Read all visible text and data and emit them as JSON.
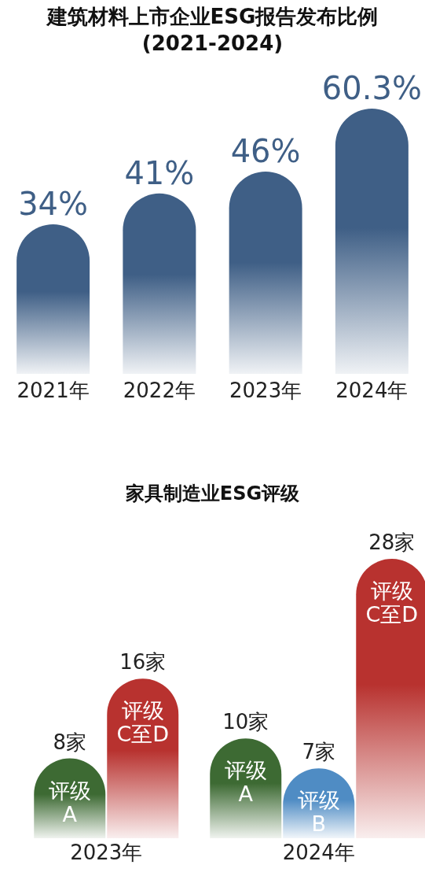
{
  "chart_data": [
    {
      "type": "bar",
      "title": "建筑材料上市企业ESG报告发布比例",
      "subtitle": "(2021-2024)",
      "categories": [
        "2021年",
        "2022年",
        "2023年",
        "2024年"
      ],
      "values": [
        34,
        41,
        46,
        60.3
      ],
      "color": "#3f5f86",
      "value_labels": [
        "34%",
        "41%",
        "46%",
        "60.3%"
      ]
    },
    {
      "type": "bar",
      "title": "家具制造业ESG评级",
      "categories": [
        "2023年",
        "2024年"
      ],
      "series": [
        {
          "name": "评级 A",
          "color": "#3d6a33",
          "values": [
            8,
            10
          ],
          "value_labels": [
            "8家",
            "10家"
          ]
        },
        {
          "name": "评级 B",
          "color": "#4f8cc4",
          "values": [
            null,
            7
          ],
          "value_labels": [
            null,
            "7家"
          ]
        },
        {
          "name": "评级 C至D",
          "color": "#b8322f",
          "values": [
            16,
            28
          ],
          "value_labels": [
            "16家",
            "28家"
          ]
        }
      ]
    }
  ]
}
